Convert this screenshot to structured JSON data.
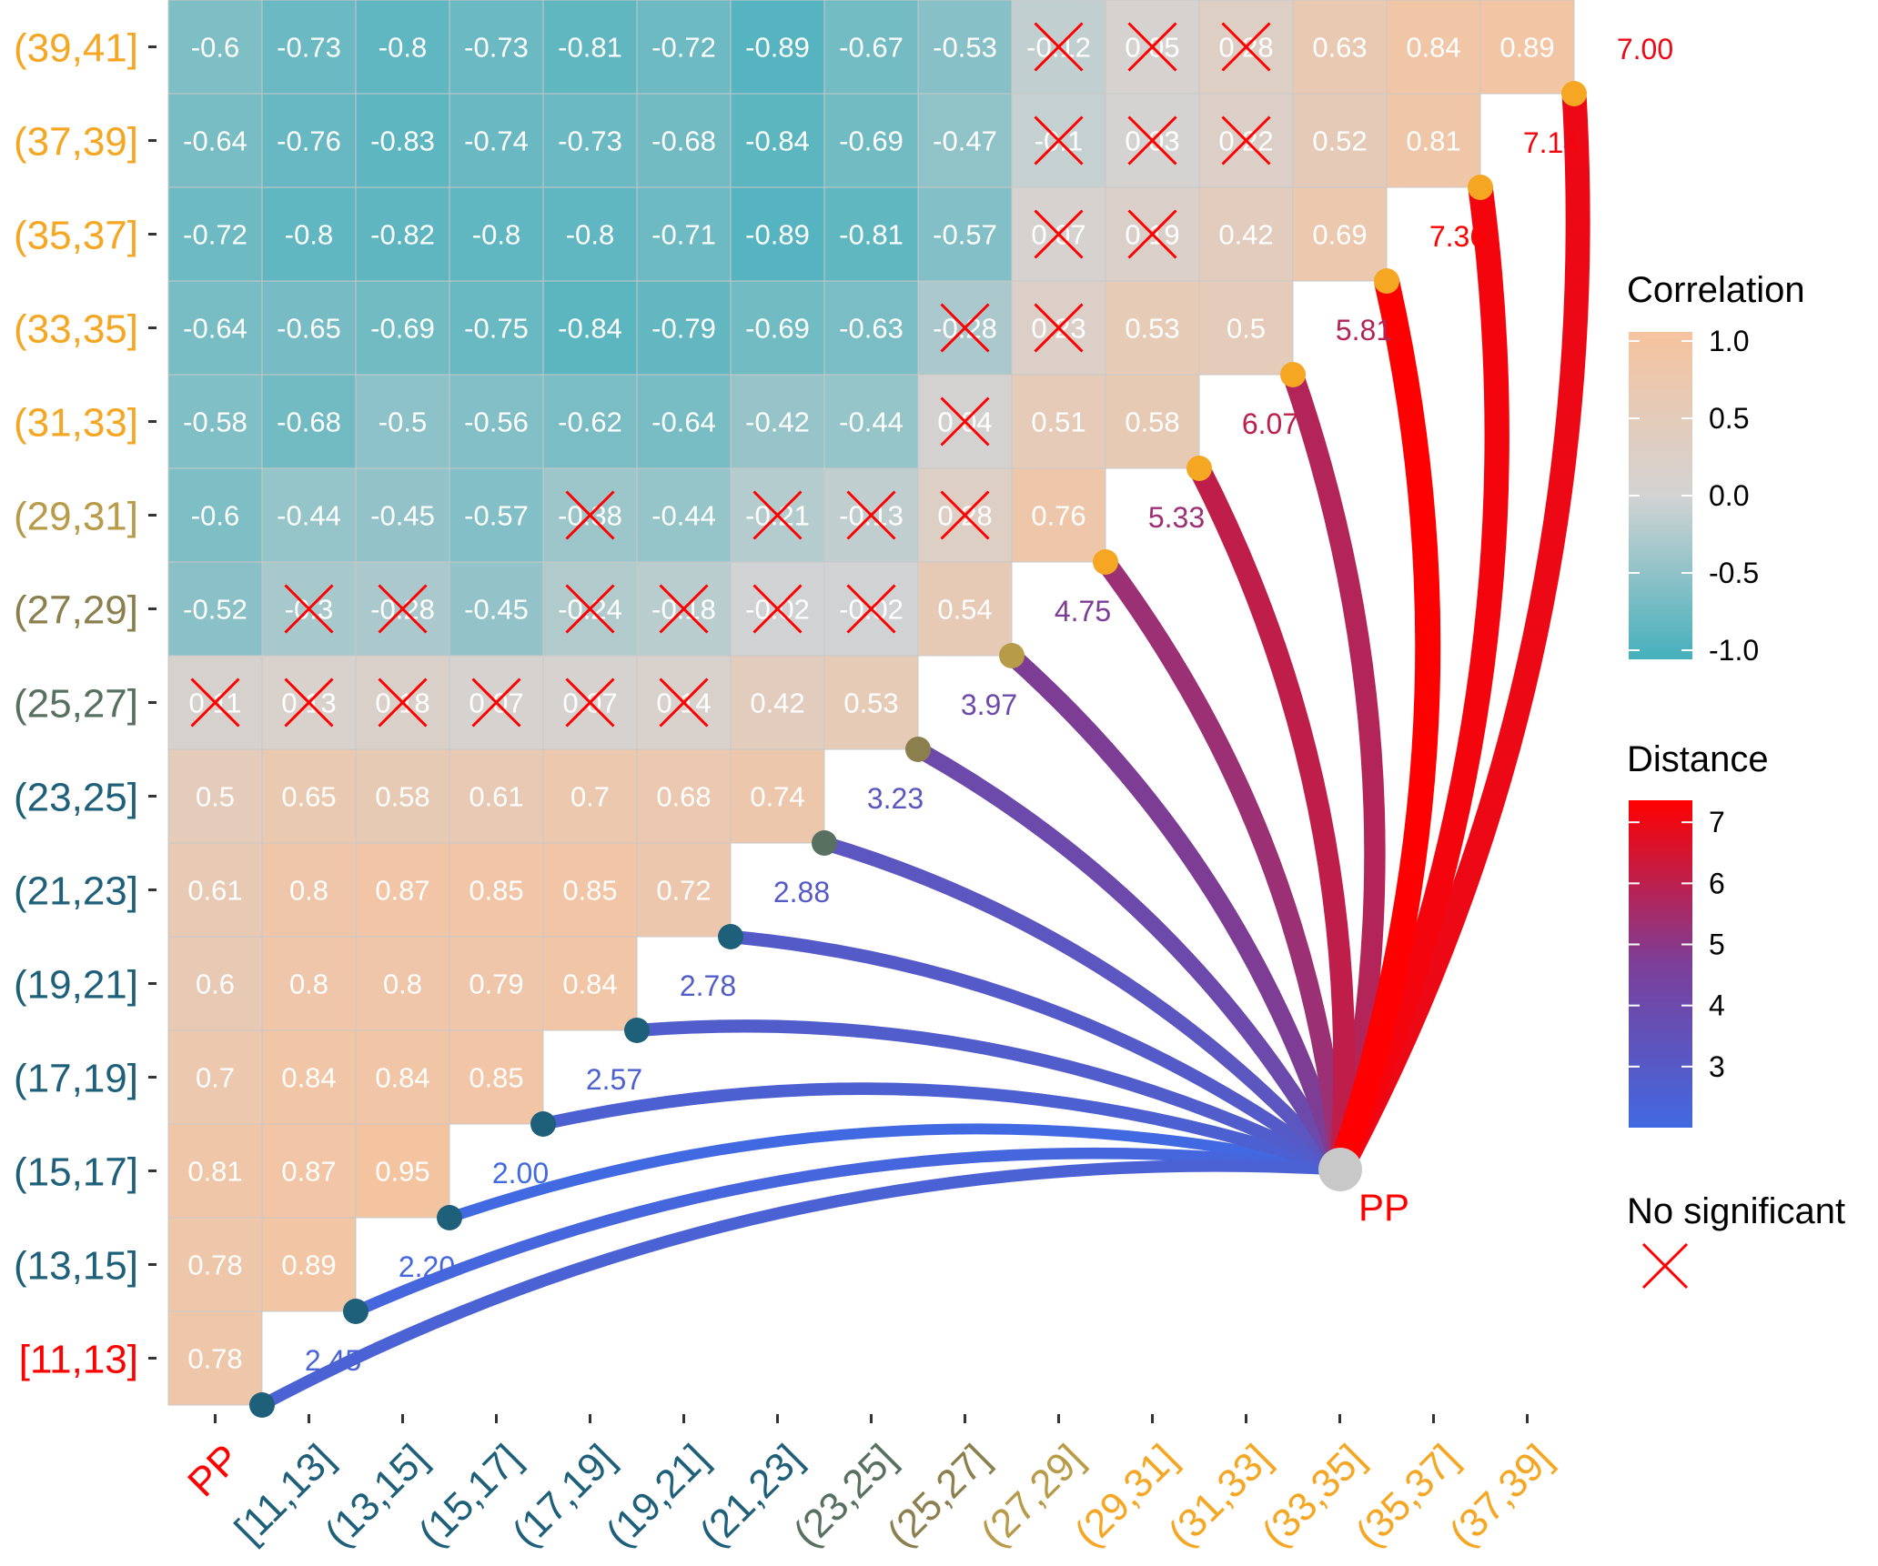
{
  "chart_data": {
    "type": "heatmap",
    "title": "",
    "rows": [
      "(39,41]",
      "(37,39]",
      "(35,37]",
      "(33,35]",
      "(31,33]",
      "(29,31]",
      "(27,29]",
      "(25,27]",
      "(23,25]",
      "(21,23]",
      "(19,21]",
      "(17,19]",
      "(15,17]",
      "(13,15]",
      "[11,13]"
    ],
    "row_colors": [
      "#F5A623",
      "#F5A623",
      "#F5A623",
      "#F5A623",
      "#F5A623",
      "#B89B49",
      "#8B7F4E",
      "#57705F",
      "#1E5F7A",
      "#1E5F7A",
      "#1E5F7A",
      "#1E5F7A",
      "#1E5F7A",
      "#1E5F7A",
      "#FF0000"
    ],
    "columns": [
      "PP",
      "[11,13]",
      "(13,15]",
      "(15,17]",
      "(17,19]",
      "(19,21]",
      "(21,23]",
      "(23,25]",
      "(25,27]",
      "(27,29]",
      "(29,31]",
      "(31,33]",
      "(33,35]",
      "(35,37]",
      "(37,39]"
    ],
    "column_colors": [
      "#FF0000",
      "#1E5F7A",
      "#1E5F7A",
      "#1E5F7A",
      "#1E5F7A",
      "#1E5F7A",
      "#1E5F7A",
      "#57705F",
      "#8B7F4E",
      "#B89B49",
      "#F5A623",
      "#F5A623",
      "#F5A623",
      "#F5A623",
      "#F5A623"
    ],
    "correlation_matrix": [
      [
        -0.6,
        -0.73,
        -0.8,
        -0.73,
        -0.81,
        -0.72,
        -0.89,
        -0.67,
        -0.53,
        -0.12,
        0.05,
        0.28,
        0.63,
        0.84,
        0.89
      ],
      [
        -0.64,
        -0.76,
        -0.83,
        -0.74,
        -0.73,
        -0.68,
        -0.84,
        -0.69,
        -0.47,
        -0.1,
        0.03,
        0.22,
        0.52,
        0.81,
        null
      ],
      [
        -0.72,
        -0.8,
        -0.82,
        -0.8,
        -0.8,
        -0.71,
        -0.89,
        -0.81,
        -0.57,
        0.07,
        0.19,
        0.42,
        0.69,
        null,
        null
      ],
      [
        -0.64,
        -0.65,
        -0.69,
        -0.75,
        -0.84,
        -0.79,
        -0.69,
        -0.63,
        -0.28,
        0.23,
        0.53,
        0.5,
        null,
        null,
        null
      ],
      [
        -0.58,
        -0.68,
        -0.5,
        -0.56,
        -0.62,
        -0.64,
        -0.42,
        -0.44,
        0.04,
        0.51,
        0.58,
        null,
        null,
        null,
        null
      ],
      [
        -0.6,
        -0.44,
        -0.45,
        -0.57,
        -0.38,
        -0.44,
        -0.21,
        -0.13,
        0.28,
        0.76,
        null,
        null,
        null,
        null,
        null
      ],
      [
        -0.52,
        -0.3,
        -0.28,
        -0.45,
        -0.24,
        -0.18,
        -0.02,
        -0.02,
        0.54,
        null,
        null,
        null,
        null,
        null,
        null
      ],
      [
        0.11,
        0.13,
        0.18,
        0.07,
        0.07,
        0.14,
        0.42,
        0.53,
        null,
        null,
        null,
        null,
        null,
        null,
        null
      ],
      [
        0.5,
        0.65,
        0.58,
        0.61,
        0.7,
        0.68,
        0.74,
        null,
        null,
        null,
        null,
        null,
        null,
        null,
        null
      ],
      [
        0.61,
        0.8,
        0.87,
        0.85,
        0.85,
        0.72,
        null,
        null,
        null,
        null,
        null,
        null,
        null,
        null,
        null
      ],
      [
        0.6,
        0.8,
        0.8,
        0.79,
        0.84,
        null,
        null,
        null,
        null,
        null,
        null,
        null,
        null,
        null,
        null
      ],
      [
        0.7,
        0.84,
        0.84,
        0.85,
        null,
        null,
        null,
        null,
        null,
        null,
        null,
        null,
        null,
        null,
        null
      ],
      [
        0.81,
        0.87,
        0.95,
        null,
        null,
        null,
        null,
        null,
        null,
        null,
        null,
        null,
        null,
        null,
        null
      ],
      [
        0.78,
        0.89,
        null,
        null,
        null,
        null,
        null,
        null,
        null,
        null,
        null,
        null,
        null,
        null,
        null
      ],
      [
        0.78,
        null,
        null,
        null,
        null,
        null,
        null,
        null,
        null,
        null,
        null,
        null,
        null,
        null,
        null
      ]
    ],
    "cell_labels": [
      [
        "-0.6",
        "-0.73",
        "-0.8",
        "-0.73",
        "-0.81",
        "-0.72",
        "-0.89",
        "-0.67",
        "-0.53",
        "-0.12",
        "0.05",
        "0.28",
        "0.63",
        "0.84",
        "0.89"
      ],
      [
        "-0.64",
        "-0.76",
        "-0.83",
        "-0.74",
        "-0.73",
        "-0.68",
        "-0.84",
        "-0.69",
        "-0.47",
        "-0.1",
        "0.03",
        "0.22",
        "0.52",
        "0.81",
        null
      ],
      [
        "-0.72",
        "-0.8",
        "-0.82",
        "-0.8",
        "-0.8",
        "-0.71",
        "-0.89",
        "-0.81",
        "-0.57",
        "0.07",
        "0.19",
        "0.42",
        "0.69",
        null,
        null
      ],
      [
        "-0.64",
        "-0.65",
        "-0.69",
        "-0.75",
        "-0.84",
        "-0.79",
        "-0.69",
        "-0.63",
        "-0.28",
        "0.23",
        "0.53",
        "0.5",
        null,
        null,
        null
      ],
      [
        "-0.58",
        "-0.68",
        "-0.5",
        "-0.56",
        "-0.62",
        "-0.64",
        "-0.42",
        "-0.44",
        "0.04",
        "0.51",
        "0.58",
        null,
        null,
        null,
        null
      ],
      [
        "-0.6",
        "-0.44",
        "-0.45",
        "-0.57",
        "-0.38",
        "-0.44",
        "-0.21",
        "-0.13",
        "0.28",
        "0.76",
        null,
        null,
        null,
        null,
        null
      ],
      [
        "-0.52",
        "-0.3",
        "-0.28",
        "-0.45",
        "-0.24",
        "-0.18",
        "-0.02",
        "-0.02",
        "0.54",
        null,
        null,
        null,
        null,
        null,
        null
      ],
      [
        "0.11",
        "0.13",
        "0.18",
        "0.07",
        "0.07",
        "0.14",
        "0.42",
        "0.53",
        null,
        null,
        null,
        null,
        null,
        null,
        null
      ],
      [
        "0.5",
        "0.65",
        "0.58",
        "0.61",
        "0.7",
        "0.68",
        "0.74",
        null,
        null,
        null,
        null,
        null,
        null,
        null,
        null
      ],
      [
        "0.61",
        "0.8",
        "0.87",
        "0.85",
        "0.85",
        "0.72",
        null,
        null,
        null,
        null,
        null,
        null,
        null,
        null,
        null
      ],
      [
        "0.6",
        "0.8",
        "0.8",
        "0.79",
        "0.84",
        null,
        null,
        null,
        null,
        null,
        null,
        null,
        null,
        null,
        null
      ],
      [
        "0.7",
        "0.84",
        "0.84",
        "0.85",
        null,
        null,
        null,
        null,
        null,
        null,
        null,
        null,
        null,
        null,
        null
      ],
      [
        "0.81",
        "0.87",
        "0.95",
        null,
        null,
        null,
        null,
        null,
        null,
        null,
        null,
        null,
        null,
        null,
        null
      ],
      [
        "0.78",
        "0.89",
        null,
        null,
        null,
        null,
        null,
        null,
        null,
        null,
        null,
        null,
        null,
        null,
        null
      ],
      [
        "0.78",
        null,
        null,
        null,
        null,
        null,
        null,
        null,
        null,
        null,
        null,
        null,
        null,
        null,
        null
      ]
    ],
    "not_significant": [
      [
        0,
        9
      ],
      [
        0,
        10
      ],
      [
        0,
        11
      ],
      [
        1,
        9
      ],
      [
        1,
        10
      ],
      [
        1,
        11
      ],
      [
        2,
        9
      ],
      [
        2,
        10
      ],
      [
        3,
        8
      ],
      [
        3,
        9
      ],
      [
        4,
        8
      ],
      [
        5,
        4
      ],
      [
        5,
        6
      ],
      [
        5,
        7
      ],
      [
        5,
        8
      ],
      [
        6,
        1
      ],
      [
        6,
        2
      ],
      [
        6,
        4
      ],
      [
        6,
        5
      ],
      [
        6,
        6
      ],
      [
        6,
        7
      ],
      [
        7,
        0
      ],
      [
        7,
        1
      ],
      [
        7,
        2
      ],
      [
        7,
        3
      ],
      [
        7,
        4
      ],
      [
        7,
        5
      ]
    ],
    "links": {
      "source": "PP",
      "targets": [
        "[11,13]",
        "(13,15]",
        "(15,17]",
        "(17,19]",
        "(19,21]",
        "(21,23]",
        "(23,25]",
        "(25,27]",
        "(27,29]",
        "(29,31]",
        "(31,33]",
        "(33,35]",
        "(35,37]",
        "(37,39]",
        "(39,41]"
      ],
      "distances": [
        2.45,
        2.2,
        2.0,
        2.57,
        2.78,
        2.88,
        3.23,
        3.97,
        4.75,
        5.33,
        6.07,
        5.81,
        7.36,
        7.14,
        7.0
      ],
      "distance_labels": [
        "2.45",
        "2.20",
        "2.00",
        "2.57",
        "2.78",
        "2.88",
        "3.23",
        "3.97",
        "4.75",
        "5.33",
        "6.07",
        "5.81",
        "7.36",
        "7.14",
        "7.00"
      ],
      "node_colors": [
        "#1E5F7A",
        "#1E5F7A",
        "#1E5F7A",
        "#1E5F7A",
        "#1E5F7A",
        "#1E5F7A",
        "#57705F",
        "#8B7F4E",
        "#B89B49",
        "#F5A623",
        "#F5A623",
        "#F5A623",
        "#F5A623",
        "#F5A623",
        "#F5A623"
      ],
      "center_label": "PP",
      "center_color": "#C8C8C8"
    },
    "legends": {
      "correlation": {
        "title": "Correlation",
        "ticks": [
          "1.0",
          "0.5",
          "0.0",
          "-0.5",
          "-1.0"
        ],
        "tick_values": [
          1.0,
          0.5,
          0.0,
          -0.5,
          -1.0
        ],
        "range": [
          -1,
          1
        ],
        "colors": {
          "low": "#45B0BC",
          "mid": "#D3D3D3",
          "high": "#F6C39E"
        }
      },
      "distance": {
        "title": "Distance",
        "ticks": [
          "7",
          "6",
          "5",
          "4",
          "3"
        ],
        "tick_values": [
          7,
          6,
          5,
          4,
          3
        ],
        "range": [
          2,
          7.36
        ],
        "colors": {
          "low": "#4169E1",
          "mid": "#7B3F99",
          "high": "#FF0000"
        }
      },
      "significance": {
        "title": "No significant",
        "symbol": "red-x-icon",
        "color": "#FF0000"
      }
    },
    "label_color": "#FF0000",
    "grid_color": "#C8C8C8"
  }
}
